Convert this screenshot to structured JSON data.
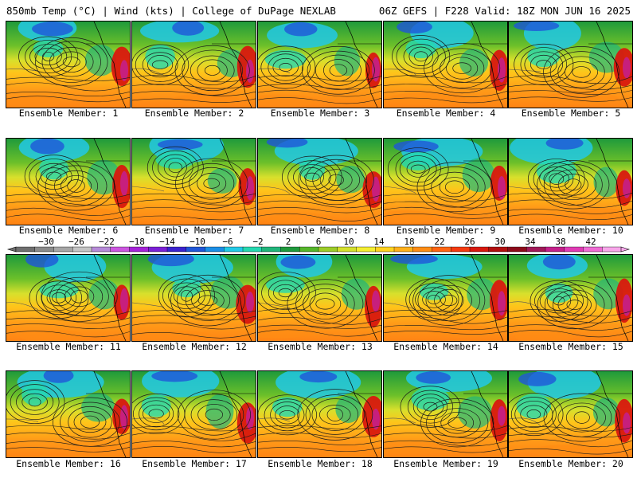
{
  "header": {
    "left": "850mb Temp (°C) | Wind (kts) | College of DuPage NEXLAB",
    "right": "06Z GEFS | F228 Valid: 18Z MON JUN 16 2025"
  },
  "members": [
    "Ensemble Member: 1",
    "Ensemble Member: 2",
    "Ensemble Member: 3",
    "Ensemble Member: 4",
    "Ensemble Member: 5",
    "Ensemble Member: 6",
    "Ensemble Member: 7",
    "Ensemble Member: 8",
    "Ensemble Member: 9",
    "Ensemble Member: 10",
    "Ensemble Member: 11",
    "Ensemble Member: 12",
    "Ensemble Member: 13",
    "Ensemble Member: 14",
    "Ensemble Member: 15",
    "Ensemble Member: 16",
    "Ensemble Member: 17",
    "Ensemble Member: 18",
    "Ensemble Member: 19",
    "Ensemble Member: 20"
  ],
  "colorbar": {
    "labels": [
      "−30",
      "−26",
      "−22",
      "−18",
      "−14",
      "−10",
      "−6",
      "−2",
      "2",
      "6",
      "10",
      "14",
      "18",
      "22",
      "26",
      "30",
      "34",
      "38",
      "42"
    ],
    "colors": [
      "#6e6e6e",
      "#8a8a8a",
      "#a6a6a6",
      "#c4c4c4",
      "#b68ad8",
      "#cc55e0",
      "#a522d8",
      "#7a1fd6",
      "#3a22cf",
      "#1f56d8",
      "#1a8ee6",
      "#22c9e6",
      "#25d8b0",
      "#20b57a",
      "#1f9a3c",
      "#55b62a",
      "#9ccc28",
      "#d4e02c",
      "#f4ee30",
      "#ffd21f",
      "#ffb01a",
      "#ff8c14",
      "#ff6412",
      "#f53a10",
      "#d8180e",
      "#b00e0e",
      "#8c0a1a",
      "#a01858",
      "#c41f8a",
      "#e03ab4",
      "#f06ad4",
      "#f8a6ea"
    ],
    "range": [
      -34,
      46
    ],
    "step": 2.5
  }
}
